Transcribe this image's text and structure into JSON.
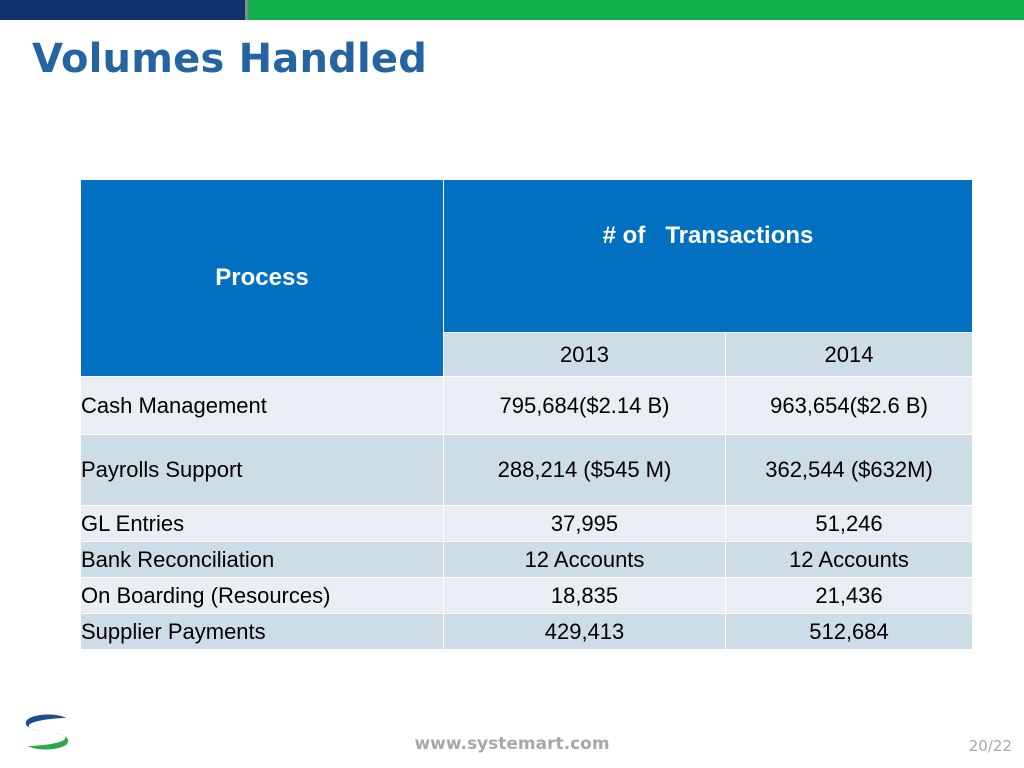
{
  "slide": {
    "title": "Volumes Handled",
    "footer_url": "www.systemart.com",
    "page_number": "20/22"
  },
  "table": {
    "header_process": "Process",
    "header_transactions": "# of   Transactions",
    "years": [
      "2013",
      "2014"
    ],
    "rows": [
      {
        "process": "Cash Management",
        "v2013": "795,684($2.14 B)",
        "v2014": "963,654($2.6 B)"
      },
      {
        "process": "Payrolls Support",
        "v2013": "288,214 ($545 M)",
        "v2014": "362,544 ($632M)"
      },
      {
        "process": "GL Entries",
        "v2013": "37,995",
        "v2014": "51,246"
      },
      {
        "process": "Bank Reconciliation",
        "v2013": "12 Accounts",
        "v2014": "12 Accounts"
      },
      {
        "process": "On Boarding (Resources)",
        "v2013": "18,835",
        "v2014": "21,436"
      },
      {
        "process": "Supplier Payments",
        "v2013": "429,413",
        "v2014": "512,684"
      }
    ]
  },
  "colors": {
    "title": "#2464a1",
    "header_bg": "#0170c1",
    "row_light": "#e8eef3",
    "row_dark": "#cddde8",
    "topbar_navy": "#10336e",
    "topbar_green": "#12b04b"
  },
  "icons": {
    "logo": "systemart-s-logo"
  }
}
